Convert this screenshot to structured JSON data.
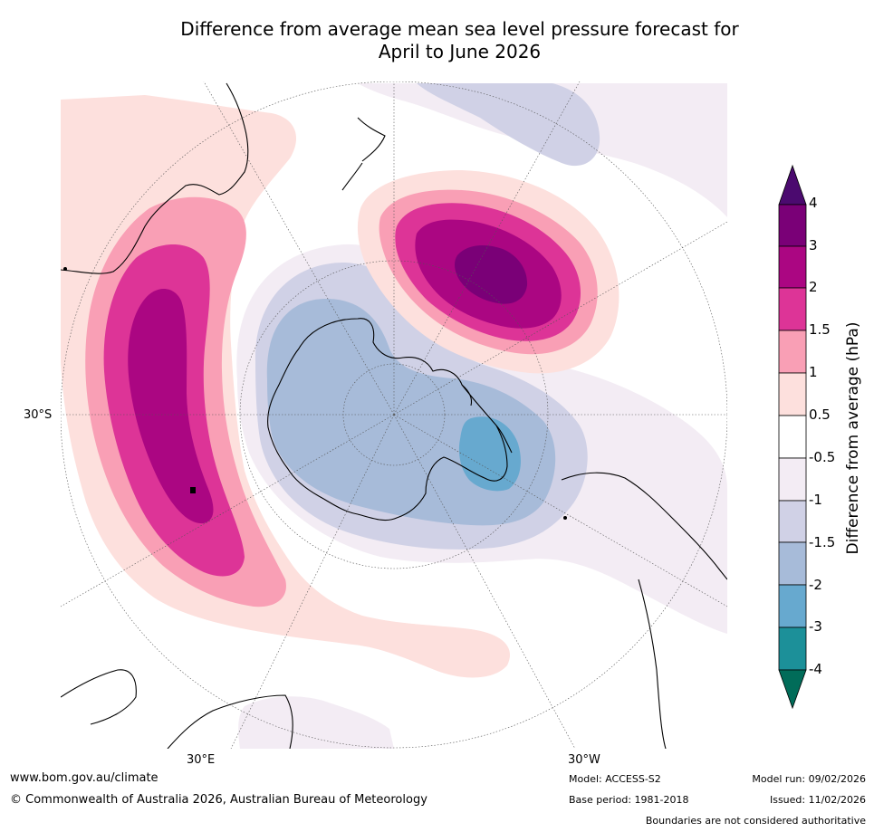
{
  "title": {
    "line1": "Difference from average mean sea level pressure forecast for",
    "line2": "April to June 2026"
  },
  "map_labels": {
    "lat_label": "30°S",
    "lon_label_east": "30°E",
    "lon_label_west": "30°W"
  },
  "colorbar": {
    "title": "Difference from average (hPa)",
    "ticks": [
      "4",
      "3",
      "2",
      "1.5",
      "1",
      "0.5",
      "-0.5",
      "-1",
      "-1.5",
      "-2",
      "-3",
      "-4"
    ],
    "colors": {
      "above_4": "#4b0a6f",
      "3_to_4": "#7a0077",
      "2_to_3": "#ab0682",
      "1.5_to_2": "#dd3497",
      "1_to_1.5": "#f99fb5",
      "0.5_to_1": "#fde0dd",
      "neutral": "#ffffff",
      "-1_to_-0.5": "#f3ecf4",
      "-1.5_to_-1": "#d0d1e6",
      "-2_to_-1.5": "#a7bbd9",
      "-3_to_-2": "#67a9cf",
      "-4_to_-3": "#1c9099",
      "below_-4": "#016c59"
    }
  },
  "footer": {
    "url": "www.bom.gov.au/climate",
    "copyright": "© Commonwealth of Australia 2026, Australian Bureau of Meteorology",
    "model": "Model: ACCESS-S2",
    "base_period": "Base period: 1981-2018",
    "model_run": "Model run: 09/02/2026",
    "issued": "Issued: 11/02/2026",
    "disclaimer": "Boundaries are not considered authoritative"
  }
}
